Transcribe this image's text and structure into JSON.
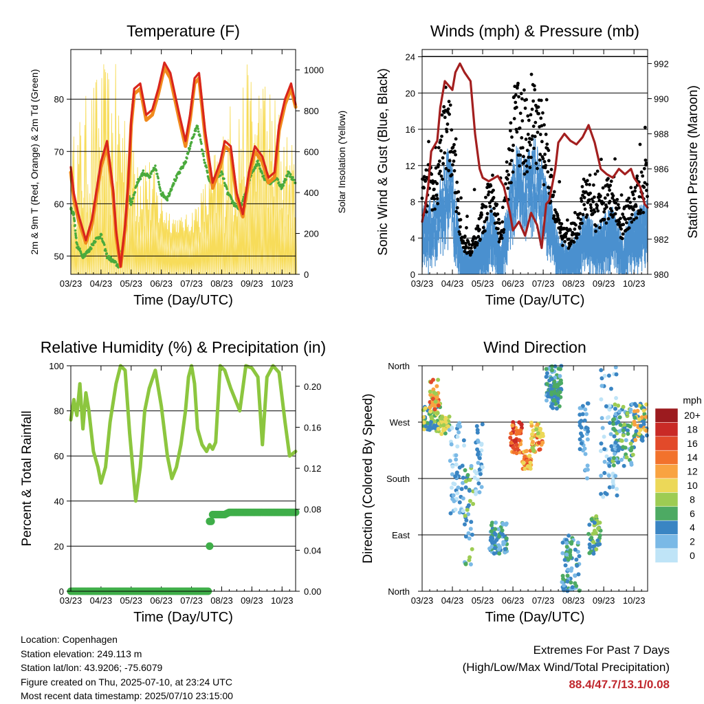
{
  "months": [
    "03/23",
    "04/23",
    "05/23",
    "06/23",
    "07/23",
    "08/23",
    "09/23",
    "10/23"
  ],
  "chart_data": [
    {
      "type": "line",
      "title": "Temperature (F)",
      "xlabel": "Time (Day/UTC)",
      "ylabel": "2m & 9m T (Red, Orange) & 2m Td (Green)",
      "ylabel_right": "Solar Insolation (Yellow)",
      "ylim": [
        46.5,
        89.5
      ],
      "ylim_right": [
        0,
        1100
      ],
      "yticks": [
        50,
        60,
        70,
        80
      ],
      "yticks_right": [
        0,
        200,
        400,
        600,
        800,
        1000
      ],
      "series": [
        {
          "color": "#d9261c",
          "points": [
            [
              0,
              67
            ],
            [
              0.1,
              62
            ],
            [
              0.25,
              58
            ],
            [
              0.5,
              53
            ],
            [
              0.7,
              57
            ],
            [
              1.0,
              68
            ],
            [
              1.2,
              72
            ],
            [
              1.4,
              63
            ],
            [
              1.5,
              55
            ],
            [
              1.65,
              48
            ],
            [
              1.8,
              56
            ],
            [
              1.9,
              64
            ],
            [
              2.0,
              76
            ],
            [
              2.1,
              82
            ],
            [
              2.3,
              83
            ],
            [
              2.5,
              77
            ],
            [
              2.7,
              78
            ],
            [
              2.9,
              82
            ],
            [
              3.1,
              87
            ],
            [
              3.3,
              85
            ],
            [
              3.6,
              77
            ],
            [
              3.8,
              72
            ],
            [
              3.95,
              77
            ],
            [
              4.1,
              84
            ],
            [
              4.25,
              85
            ],
            [
              4.45,
              74
            ],
            [
              4.7,
              64
            ],
            [
              4.95,
              68
            ],
            [
              5.1,
              72
            ],
            [
              5.3,
              71
            ],
            [
              5.5,
              62
            ],
            [
              5.7,
              58
            ],
            [
              5.9,
              66
            ],
            [
              6.1,
              71
            ],
            [
              6.35,
              69
            ],
            [
              6.55,
              65
            ],
            [
              6.75,
              66
            ],
            [
              6.9,
              75
            ],
            [
              7.1,
              80
            ],
            [
              7.3,
              83
            ],
            [
              7.45,
              79
            ]
          ]
        },
        {
          "color": "#f18a1c",
          "points": [
            [
              0,
              66
            ],
            [
              0.1,
              61
            ],
            [
              0.25,
              57
            ],
            [
              0.5,
              52.5
            ],
            [
              0.7,
              56
            ],
            [
              1.0,
              67
            ],
            [
              1.2,
              71
            ],
            [
              1.4,
              62
            ],
            [
              1.5,
              54
            ],
            [
              1.65,
              48
            ],
            [
              1.8,
              55
            ],
            [
              1.9,
              63
            ],
            [
              2.0,
              75
            ],
            [
              2.1,
              81
            ],
            [
              2.3,
              82
            ],
            [
              2.5,
              76
            ],
            [
              2.7,
              77
            ],
            [
              2.9,
              81
            ],
            [
              3.1,
              86
            ],
            [
              3.3,
              84
            ],
            [
              3.6,
              76
            ],
            [
              3.8,
              71
            ],
            [
              3.95,
              76
            ],
            [
              4.1,
              83
            ],
            [
              4.25,
              84
            ],
            [
              4.45,
              73
            ],
            [
              4.7,
              63
            ],
            [
              4.95,
              67
            ],
            [
              5.1,
              71
            ],
            [
              5.3,
              70
            ],
            [
              5.5,
              61
            ],
            [
              5.7,
              57.5
            ],
            [
              5.9,
              65
            ],
            [
              6.1,
              70
            ],
            [
              6.35,
              68
            ],
            [
              6.55,
              64
            ],
            [
              6.75,
              65
            ],
            [
              6.9,
              74
            ],
            [
              7.1,
              79
            ],
            [
              7.3,
              82
            ],
            [
              7.45,
              78.5
            ]
          ]
        },
        {
          "color": "#4aaa3c",
          "points": [
            [
              0,
              59
            ],
            [
              0.1,
              58
            ],
            [
              0.2,
              52
            ],
            [
              0.4,
              50
            ],
            [
              0.6,
              51
            ],
            [
              0.8,
              53
            ],
            [
              1.0,
              54
            ],
            [
              1.2,
              50
            ],
            [
              1.4,
              49
            ],
            [
              1.6,
              48
            ],
            [
              1.8,
              55
            ],
            [
              1.9,
              62
            ],
            [
              2.0,
              60
            ],
            [
              2.2,
              64
            ],
            [
              2.4,
              66
            ],
            [
              2.6,
              65
            ],
            [
              2.8,
              67
            ],
            [
              3.0,
              62
            ],
            [
              3.2,
              61
            ],
            [
              3.4,
              64
            ],
            [
              3.6,
              66
            ],
            [
              3.8,
              68
            ],
            [
              4.0,
              72
            ],
            [
              4.2,
              75
            ],
            [
              4.4,
              69
            ],
            [
              4.6,
              64
            ],
            [
              4.8,
              65
            ],
            [
              5.0,
              66
            ],
            [
              5.2,
              62
            ],
            [
              5.4,
              60
            ],
            [
              5.6,
              59
            ],
            [
              5.8,
              62
            ],
            [
              6.0,
              66
            ],
            [
              6.2,
              68
            ],
            [
              6.4,
              65
            ],
            [
              6.6,
              64
            ],
            [
              6.8,
              65
            ],
            [
              7.0,
              63
            ],
            [
              7.2,
              66
            ],
            [
              7.45,
              64
            ]
          ]
        }
      ]
    },
    {
      "type": "scatter",
      "title": "Winds (mph) & Pressure (mb)",
      "xlabel": "Time (Day/UTC)",
      "ylabel": "Sonic Wind & Gust (Blue, Black)",
      "ylabel_right": "Station Pressure (Maroon)",
      "ylim": [
        0,
        24.8
      ],
      "ylim_right": [
        980,
        992.8
      ],
      "yticks": [
        0,
        4,
        8,
        12,
        16,
        20,
        24
      ],
      "yticks_right": [
        980,
        982,
        984,
        986,
        988,
        990,
        992
      ],
      "series": [
        {
          "color": "#a31f1f",
          "points": [
            [
              0,
              983
            ],
            [
              0.1,
              983.8
            ],
            [
              0.2,
              985
            ],
            [
              0.3,
              987
            ],
            [
              0.4,
              987.3
            ],
            [
              0.5,
              987.6
            ],
            [
              0.6,
              989.5
            ],
            [
              0.75,
              991
            ],
            [
              0.9,
              990.7
            ],
            [
              1.0,
              990.5
            ],
            [
              1.1,
              991.5
            ],
            [
              1.25,
              992
            ],
            [
              1.4,
              991.5
            ],
            [
              1.6,
              991
            ],
            [
              1.75,
              988
            ],
            [
              1.9,
              986
            ],
            [
              2.0,
              985.5
            ],
            [
              2.2,
              985.3
            ],
            [
              2.5,
              985.6
            ],
            [
              2.7,
              985
            ],
            [
              2.9,
              983.5
            ],
            [
              3.0,
              982.5
            ],
            [
              3.2,
              983
            ],
            [
              3.4,
              982.2
            ],
            [
              3.6,
              983.5
            ],
            [
              3.8,
              982.8
            ],
            [
              3.95,
              981.5
            ],
            [
              4.1,
              984
            ],
            [
              4.2,
              984.2
            ],
            [
              4.4,
              986
            ],
            [
              4.5,
              987.5
            ],
            [
              4.7,
              988
            ],
            [
              4.9,
              987.6
            ],
            [
              5.1,
              987.4
            ],
            [
              5.3,
              987.8
            ],
            [
              5.5,
              988.5
            ],
            [
              5.7,
              987.5
            ],
            [
              5.9,
              986
            ],
            [
              6.1,
              985.7
            ],
            [
              6.3,
              985.5
            ],
            [
              6.5,
              986
            ],
            [
              6.7,
              985.7
            ],
            [
              6.9,
              986
            ],
            [
              7.0,
              985.5
            ],
            [
              7.2,
              985
            ],
            [
              7.35,
              984
            ],
            [
              7.45,
              983.8
            ]
          ]
        }
      ]
    },
    {
      "type": "line",
      "title": "Relative Humidity (%) & Precipitation (in)",
      "xlabel": "Time (Day/UTC)",
      "ylabel": "Percent & Total Rainfall",
      "ylim": [
        0,
        100
      ],
      "ylim_right": [
        0,
        0.22
      ],
      "yticks": [
        0,
        20,
        40,
        60,
        80,
        100
      ],
      "yticks_right": [
        "0.00",
        "0.04",
        "0.08",
        "0.12",
        "0.16",
        "0.20"
      ],
      "series": [
        {
          "color": "#8cc63f",
          "points": [
            [
              0,
              76
            ],
            [
              0.1,
              85
            ],
            [
              0.2,
              78
            ],
            [
              0.3,
              92
            ],
            [
              0.4,
              72
            ],
            [
              0.5,
              88
            ],
            [
              0.6,
              80
            ],
            [
              0.75,
              62
            ],
            [
              0.9,
              55
            ],
            [
              1.0,
              48
            ],
            [
              1.15,
              55
            ],
            [
              1.3,
              75
            ],
            [
              1.5,
              92
            ],
            [
              1.65,
              100
            ],
            [
              1.8,
              98
            ],
            [
              1.95,
              70
            ],
            [
              2.05,
              55
            ],
            [
              2.15,
              40
            ],
            [
              2.3,
              55
            ],
            [
              2.45,
              80
            ],
            [
              2.6,
              90
            ],
            [
              2.8,
              98
            ],
            [
              3.0,
              82
            ],
            [
              3.2,
              60
            ],
            [
              3.35,
              50
            ],
            [
              3.5,
              55
            ],
            [
              3.65,
              65
            ],
            [
              3.8,
              80
            ],
            [
              3.9,
              95
            ],
            [
              4.0,
              100
            ],
            [
              4.1,
              92
            ],
            [
              4.2,
              72
            ],
            [
              4.35,
              65
            ],
            [
              4.5,
              62
            ],
            [
              4.6,
              65
            ],
            [
              4.7,
              63
            ],
            [
              4.8,
              66
            ],
            [
              4.95,
              100
            ],
            [
              5.1,
              98
            ],
            [
              5.3,
              90
            ],
            [
              5.45,
              85
            ],
            [
              5.6,
              80
            ],
            [
              5.8,
              100
            ],
            [
              6.0,
              99
            ],
            [
              6.2,
              95
            ],
            [
              6.35,
              65
            ],
            [
              6.5,
              95
            ],
            [
              6.7,
              100
            ],
            [
              6.9,
              97
            ],
            [
              7.1,
              75
            ],
            [
              7.25,
              60
            ],
            [
              7.45,
              62
            ]
          ]
        },
        {
          "color": "#3fae49",
          "points": [
            [
              0,
              0
            ],
            [
              4.55,
              0
            ],
            [
              4.6,
              20
            ],
            [
              4.65,
              31
            ],
            [
              4.7,
              34
            ],
            [
              5.1,
              34
            ],
            [
              5.25,
              35
            ],
            [
              7.45,
              35
            ]
          ]
        }
      ]
    },
    {
      "type": "scatter",
      "title": "Wind Direction",
      "xlabel": "Time (Day/UTC)",
      "ylabel": "Direction (Colored By Speed)",
      "ylim": [
        0,
        360
      ],
      "yticks": [
        "North",
        "East",
        "South",
        "West",
        "North"
      ],
      "legend": {
        "title": "mph",
        "labels": [
          "20+",
          "18",
          "16",
          "14",
          "12",
          "10",
          "8",
          "6",
          "4",
          "2",
          "0"
        ],
        "colors": [
          "#9c1b1f",
          "#c92a26",
          "#e24a2a",
          "#f2722c",
          "#f9a341",
          "#ecd858",
          "#9dcc53",
          "#4daa63",
          "#3a85c3",
          "#7ab9e6",
          "#bfe4f7"
        ]
      }
    }
  ],
  "info": {
    "location": "Location: Copenhagen",
    "elevation": "Station elevation: 249.113 m",
    "latlon": "Station lat/lon: 43.9206; -75.6079",
    "created": "Figure created on Thu, 2025-07-10, at 23:24 UTC",
    "recent": "Most recent data timestamp: 2025/07/10 23:15:00"
  },
  "extremes": {
    "title": "Extremes For Past 7 Days",
    "subtitle": "(High/Low/Max Wind/Total Precipitation)",
    "values": "88.4/47.7/13.1/0.08"
  }
}
